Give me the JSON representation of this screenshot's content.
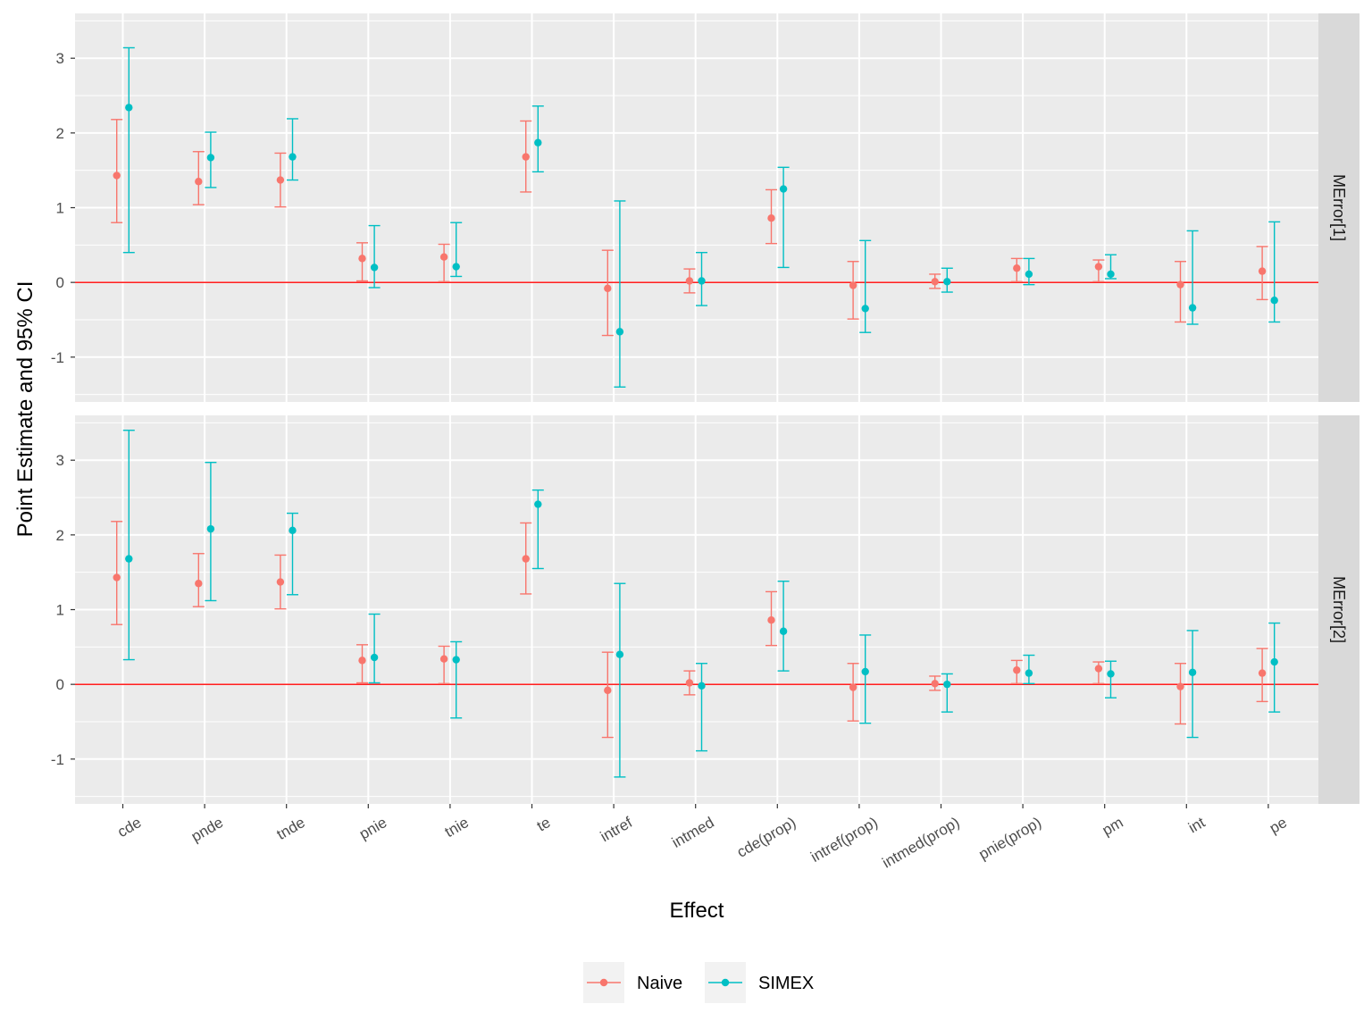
{
  "chart_data": {
    "type": "scatter",
    "subtype": "pointrange-errorbar",
    "xlabel": "Effect",
    "ylabel": "Point Estimate and 95% CI",
    "categories": [
      "cde",
      "pnde",
      "tnde",
      "pnie",
      "tnie",
      "te",
      "intref",
      "intmed",
      "cde(prop)",
      "intref(prop)",
      "intmed(prop)",
      "pnie(prop)",
      "pm",
      "int",
      "pe"
    ],
    "ylim": [
      -1.6,
      3.6
    ],
    "yticks": [
      -1,
      0,
      1,
      2,
      3
    ],
    "yticks_labels": [
      "-1",
      "0",
      "1",
      "2",
      "3"
    ],
    "reference_line": {
      "y": 0,
      "color": "#ff0000"
    },
    "grid": true,
    "legend": {
      "position": "bottom",
      "entries": [
        "Naive",
        "SIMEX"
      ]
    },
    "series_colors": {
      "Naive": "#F8766D",
      "SIMEX": "#00BFC4"
    },
    "panels": [
      {
        "strip": "MError[1]",
        "series": [
          {
            "name": "Naive",
            "estimate": [
              1.43,
              1.35,
              1.37,
              0.32,
              0.34,
              1.68,
              -0.08,
              0.02,
              0.86,
              -0.04,
              0.01,
              0.19,
              0.21,
              -0.03,
              0.15
            ],
            "lower": [
              0.8,
              1.04,
              1.01,
              0.02,
              0.01,
              1.21,
              -0.71,
              -0.14,
              0.52,
              -0.49,
              -0.08,
              0.01,
              0.01,
              -0.53,
              -0.23
            ],
            "upper": [
              2.18,
              1.75,
              1.73,
              0.53,
              0.51,
              2.16,
              0.43,
              0.18,
              1.24,
              0.28,
              0.11,
              0.32,
              0.3,
              0.28,
              0.48
            ]
          },
          {
            "name": "SIMEX",
            "estimate": [
              2.34,
              1.67,
              1.68,
              0.2,
              0.21,
              1.87,
              -0.66,
              0.02,
              1.25,
              -0.35,
              0.01,
              0.11,
              0.11,
              -0.34,
              -0.24
            ],
            "lower": [
              0.4,
              1.27,
              1.37,
              -0.07,
              0.08,
              1.48,
              -1.4,
              -0.31,
              0.2,
              -0.67,
              -0.13,
              -0.03,
              0.05,
              -0.56,
              -0.53
            ],
            "upper": [
              3.14,
              2.01,
              2.19,
              0.76,
              0.8,
              2.36,
              1.09,
              0.4,
              1.54,
              0.56,
              0.19,
              0.32,
              0.37,
              0.69,
              0.81
            ]
          }
        ]
      },
      {
        "strip": "MError[2]",
        "series": [
          {
            "name": "Naive",
            "estimate": [
              1.43,
              1.35,
              1.37,
              0.32,
              0.34,
              1.68,
              -0.08,
              0.02,
              0.86,
              -0.04,
              0.01,
              0.19,
              0.21,
              -0.03,
              0.15
            ],
            "lower": [
              0.8,
              1.04,
              1.01,
              0.02,
              0.01,
              1.21,
              -0.71,
              -0.14,
              0.52,
              -0.49,
              -0.08,
              0.01,
              0.01,
              -0.53,
              -0.23
            ],
            "upper": [
              2.18,
              1.75,
              1.73,
              0.53,
              0.51,
              2.16,
              0.43,
              0.18,
              1.24,
              0.28,
              0.11,
              0.32,
              0.3,
              0.28,
              0.48
            ]
          },
          {
            "name": "SIMEX",
            "estimate": [
              1.68,
              2.08,
              2.06,
              0.36,
              0.33,
              2.41,
              0.4,
              -0.02,
              0.71,
              0.17,
              0.0,
              0.15,
              0.14,
              0.16,
              0.3
            ],
            "lower": [
              0.33,
              1.12,
              1.2,
              0.02,
              -0.45,
              1.55,
              -1.24,
              -0.89,
              0.18,
              -0.52,
              -0.37,
              0.01,
              -0.18,
              -0.71,
              -0.37
            ],
            "upper": [
              3.4,
              2.97,
              2.29,
              0.94,
              0.57,
              2.6,
              1.35,
              0.28,
              1.38,
              0.66,
              0.14,
              0.39,
              0.31,
              0.72,
              0.82
            ]
          }
        ]
      }
    ]
  }
}
